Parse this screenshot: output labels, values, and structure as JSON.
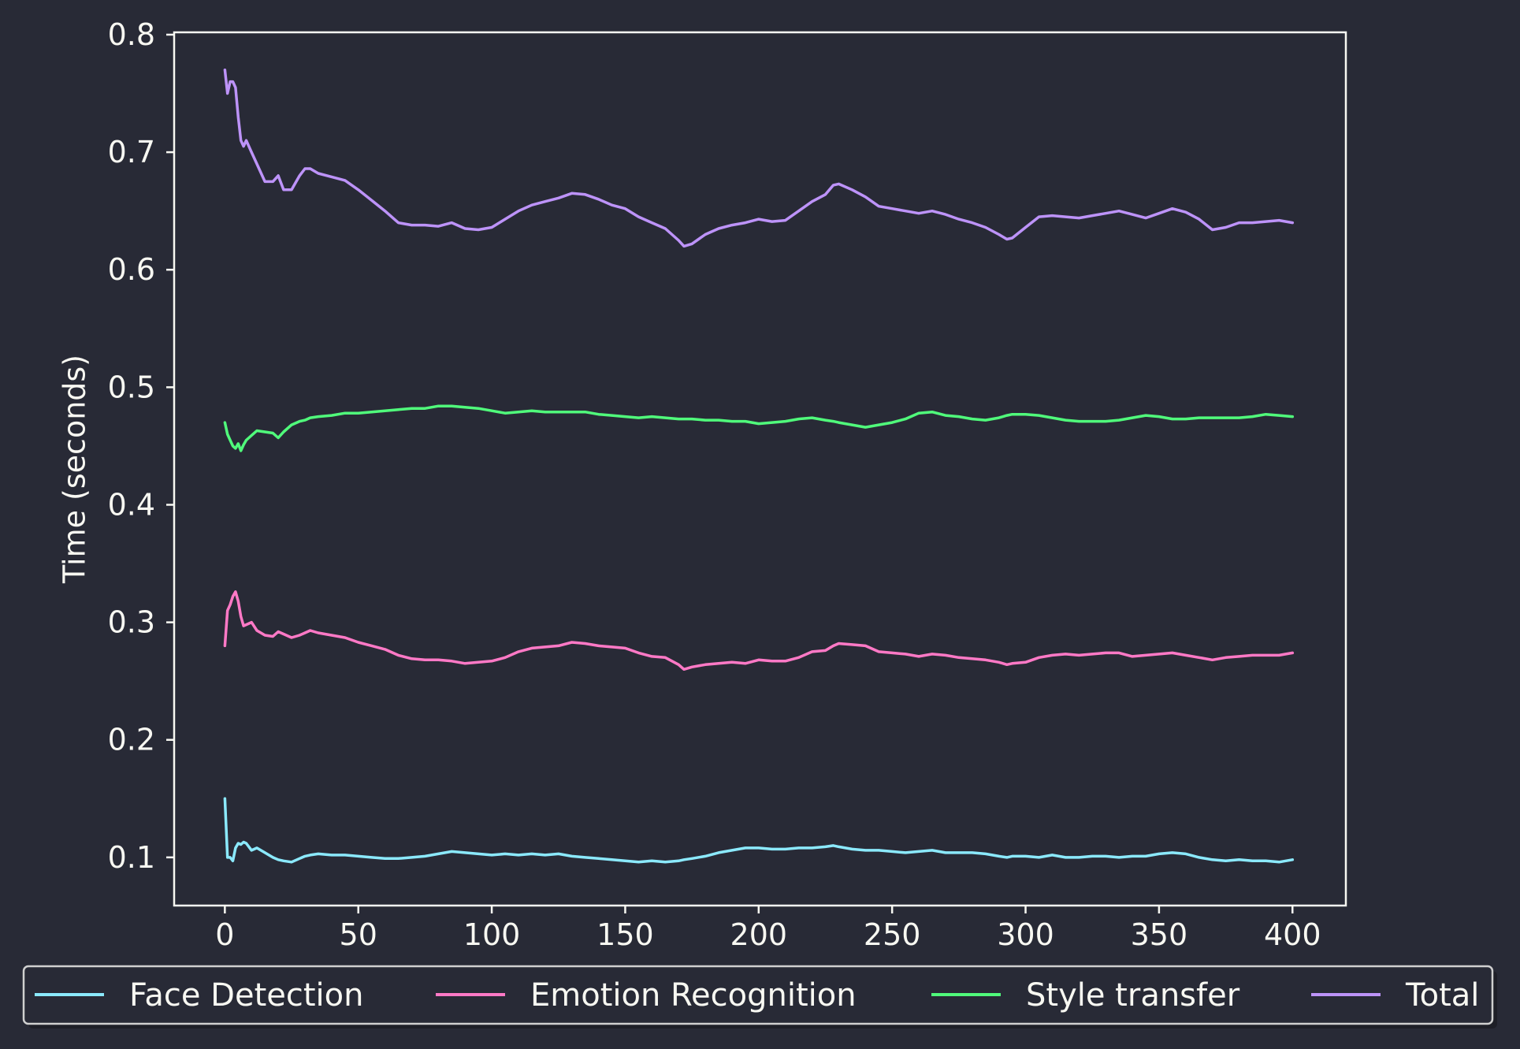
{
  "chart_data": {
    "type": "line",
    "title": "",
    "xlabel": "",
    "ylabel": "Time (seconds)",
    "xlim": [
      -19,
      420
    ],
    "ylim": [
      0.059,
      0.802
    ],
    "x_ticks": [
      0,
      50,
      100,
      150,
      200,
      250,
      300,
      350,
      400
    ],
    "y_ticks": [
      0.1,
      0.2,
      0.3,
      0.4,
      0.5,
      0.6,
      0.7,
      0.8
    ],
    "x_tick_labels": [
      "0",
      "50",
      "100",
      "150",
      "200",
      "250",
      "300",
      "350",
      "400"
    ],
    "y_tick_labels": [
      "0.1",
      "0.2",
      "0.3",
      "0.4",
      "0.5",
      "0.6",
      "0.7",
      "0.8"
    ],
    "grid": false,
    "legend_position": "bottom",
    "x": [
      0,
      1,
      2,
      3,
      4,
      5,
      6,
      7,
      8,
      10,
      12,
      15,
      18,
      20,
      22,
      25,
      28,
      30,
      32,
      35,
      40,
      45,
      50,
      55,
      60,
      65,
      70,
      75,
      80,
      85,
      90,
      95,
      100,
      105,
      110,
      115,
      120,
      125,
      130,
      135,
      140,
      145,
      150,
      155,
      160,
      165,
      170,
      172,
      175,
      180,
      185,
      190,
      195,
      200,
      205,
      210,
      215,
      220,
      225,
      228,
      230,
      235,
      240,
      245,
      250,
      255,
      260,
      265,
      270,
      275,
      280,
      285,
      290,
      293,
      295,
      300,
      305,
      310,
      315,
      320,
      325,
      330,
      335,
      340,
      345,
      350,
      355,
      360,
      365,
      370,
      375,
      380,
      385,
      390,
      395,
      400
    ],
    "series": [
      {
        "name": "Face Detection",
        "color": "#8be9fd",
        "values": [
          0.15,
          0.1,
          0.1,
          0.097,
          0.108,
          0.112,
          0.111,
          0.113,
          0.112,
          0.106,
          0.108,
          0.104,
          0.1,
          0.098,
          0.097,
          0.096,
          0.099,
          0.101,
          0.102,
          0.103,
          0.102,
          0.102,
          0.101,
          0.1,
          0.099,
          0.099,
          0.1,
          0.101,
          0.103,
          0.105,
          0.104,
          0.103,
          0.102,
          0.103,
          0.102,
          0.103,
          0.102,
          0.103,
          0.101,
          0.1,
          0.099,
          0.098,
          0.097,
          0.096,
          0.097,
          0.096,
          0.097,
          0.098,
          0.099,
          0.101,
          0.104,
          0.106,
          0.108,
          0.108,
          0.107,
          0.107,
          0.108,
          0.108,
          0.109,
          0.11,
          0.109,
          0.107,
          0.106,
          0.106,
          0.105,
          0.104,
          0.105,
          0.106,
          0.104,
          0.104,
          0.104,
          0.103,
          0.101,
          0.1,
          0.101,
          0.101,
          0.1,
          0.102,
          0.1,
          0.1,
          0.101,
          0.101,
          0.1,
          0.101,
          0.101,
          0.103,
          0.104,
          0.103,
          0.1,
          0.098,
          0.097,
          0.098,
          0.097,
          0.097,
          0.096,
          0.098
        ]
      },
      {
        "name": "Emotion Recognition",
        "color": "#ff79c6",
        "values": [
          0.28,
          0.31,
          0.315,
          0.322,
          0.326,
          0.318,
          0.305,
          0.297,
          0.298,
          0.3,
          0.293,
          0.289,
          0.288,
          0.292,
          0.29,
          0.287,
          0.289,
          0.291,
          0.293,
          0.291,
          0.289,
          0.287,
          0.283,
          0.28,
          0.277,
          0.272,
          0.269,
          0.268,
          0.268,
          0.267,
          0.265,
          0.266,
          0.267,
          0.27,
          0.275,
          0.278,
          0.279,
          0.28,
          0.283,
          0.282,
          0.28,
          0.279,
          0.278,
          0.274,
          0.271,
          0.27,
          0.264,
          0.26,
          0.262,
          0.264,
          0.265,
          0.266,
          0.265,
          0.268,
          0.267,
          0.267,
          0.27,
          0.275,
          0.276,
          0.28,
          0.282,
          0.281,
          0.28,
          0.275,
          0.274,
          0.273,
          0.271,
          0.273,
          0.272,
          0.27,
          0.269,
          0.268,
          0.266,
          0.264,
          0.265,
          0.266,
          0.27,
          0.272,
          0.273,
          0.272,
          0.273,
          0.274,
          0.274,
          0.271,
          0.272,
          0.273,
          0.274,
          0.272,
          0.27,
          0.268,
          0.27,
          0.271,
          0.272,
          0.272,
          0.272,
          0.274
        ]
      },
      {
        "name": "Style transfer",
        "color": "#50fa7b",
        "values": [
          0.47,
          0.46,
          0.455,
          0.45,
          0.448,
          0.452,
          0.446,
          0.451,
          0.455,
          0.459,
          0.463,
          0.462,
          0.461,
          0.457,
          0.462,
          0.468,
          0.471,
          0.472,
          0.474,
          0.475,
          0.476,
          0.478,
          0.478,
          0.479,
          0.48,
          0.481,
          0.482,
          0.482,
          0.484,
          0.484,
          0.483,
          0.482,
          0.48,
          0.478,
          0.479,
          0.48,
          0.479,
          0.479,
          0.479,
          0.479,
          0.477,
          0.476,
          0.475,
          0.474,
          0.475,
          0.474,
          0.473,
          0.473,
          0.473,
          0.472,
          0.472,
          0.471,
          0.471,
          0.469,
          0.47,
          0.471,
          0.473,
          0.474,
          0.472,
          0.471,
          0.47,
          0.468,
          0.466,
          0.468,
          0.47,
          0.473,
          0.478,
          0.479,
          0.476,
          0.475,
          0.473,
          0.472,
          0.474,
          0.476,
          0.477,
          0.477,
          0.476,
          0.474,
          0.472,
          0.471,
          0.471,
          0.471,
          0.472,
          0.474,
          0.476,
          0.475,
          0.473,
          0.473,
          0.474,
          0.474,
          0.474,
          0.474,
          0.475,
          0.477,
          0.476,
          0.475
        ]
      },
      {
        "name": "Total",
        "color": "#bd93f9",
        "values": [
          0.77,
          0.75,
          0.76,
          0.76,
          0.755,
          0.73,
          0.71,
          0.705,
          0.71,
          0.7,
          0.69,
          0.675,
          0.675,
          0.68,
          0.668,
          0.668,
          0.68,
          0.686,
          0.686,
          0.682,
          0.679,
          0.676,
          0.668,
          0.659,
          0.65,
          0.64,
          0.638,
          0.638,
          0.637,
          0.64,
          0.635,
          0.634,
          0.636,
          0.643,
          0.65,
          0.655,
          0.658,
          0.661,
          0.665,
          0.664,
          0.66,
          0.655,
          0.652,
          0.645,
          0.64,
          0.635,
          0.625,
          0.62,
          0.622,
          0.63,
          0.635,
          0.638,
          0.64,
          0.643,
          0.641,
          0.642,
          0.65,
          0.658,
          0.664,
          0.672,
          0.673,
          0.668,
          0.662,
          0.654,
          0.652,
          0.65,
          0.648,
          0.65,
          0.647,
          0.643,
          0.64,
          0.636,
          0.63,
          0.626,
          0.627,
          0.636,
          0.645,
          0.646,
          0.645,
          0.644,
          0.646,
          0.648,
          0.65,
          0.647,
          0.644,
          0.648,
          0.652,
          0.649,
          0.643,
          0.634,
          0.636,
          0.64,
          0.64,
          0.641,
          0.642,
          0.64
        ]
      }
    ]
  }
}
